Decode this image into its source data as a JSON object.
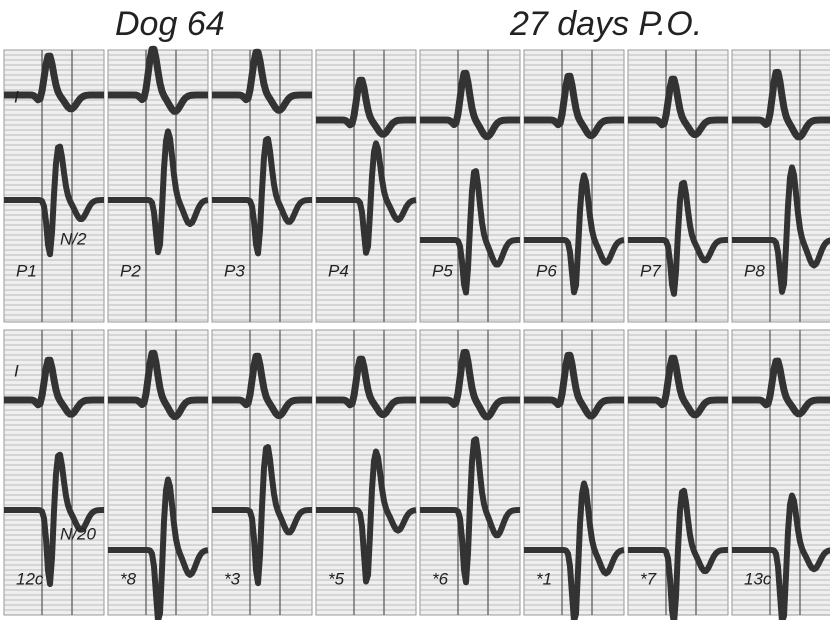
{
  "header": {
    "left": "Dog 64",
    "right": "27 days P.O."
  },
  "rows": [
    {
      "lead_label": "I",
      "annotation": "N/2",
      "panels": [
        "P1",
        "P2",
        "P3",
        "P4",
        "P5",
        "P6",
        "P7",
        "P8"
      ]
    },
    {
      "lead_label": "I",
      "annotation": "N/20",
      "panels": [
        "12c",
        "*8",
        "*3",
        "*5",
        "*6",
        "*1",
        "*7",
        "13c"
      ]
    }
  ]
}
